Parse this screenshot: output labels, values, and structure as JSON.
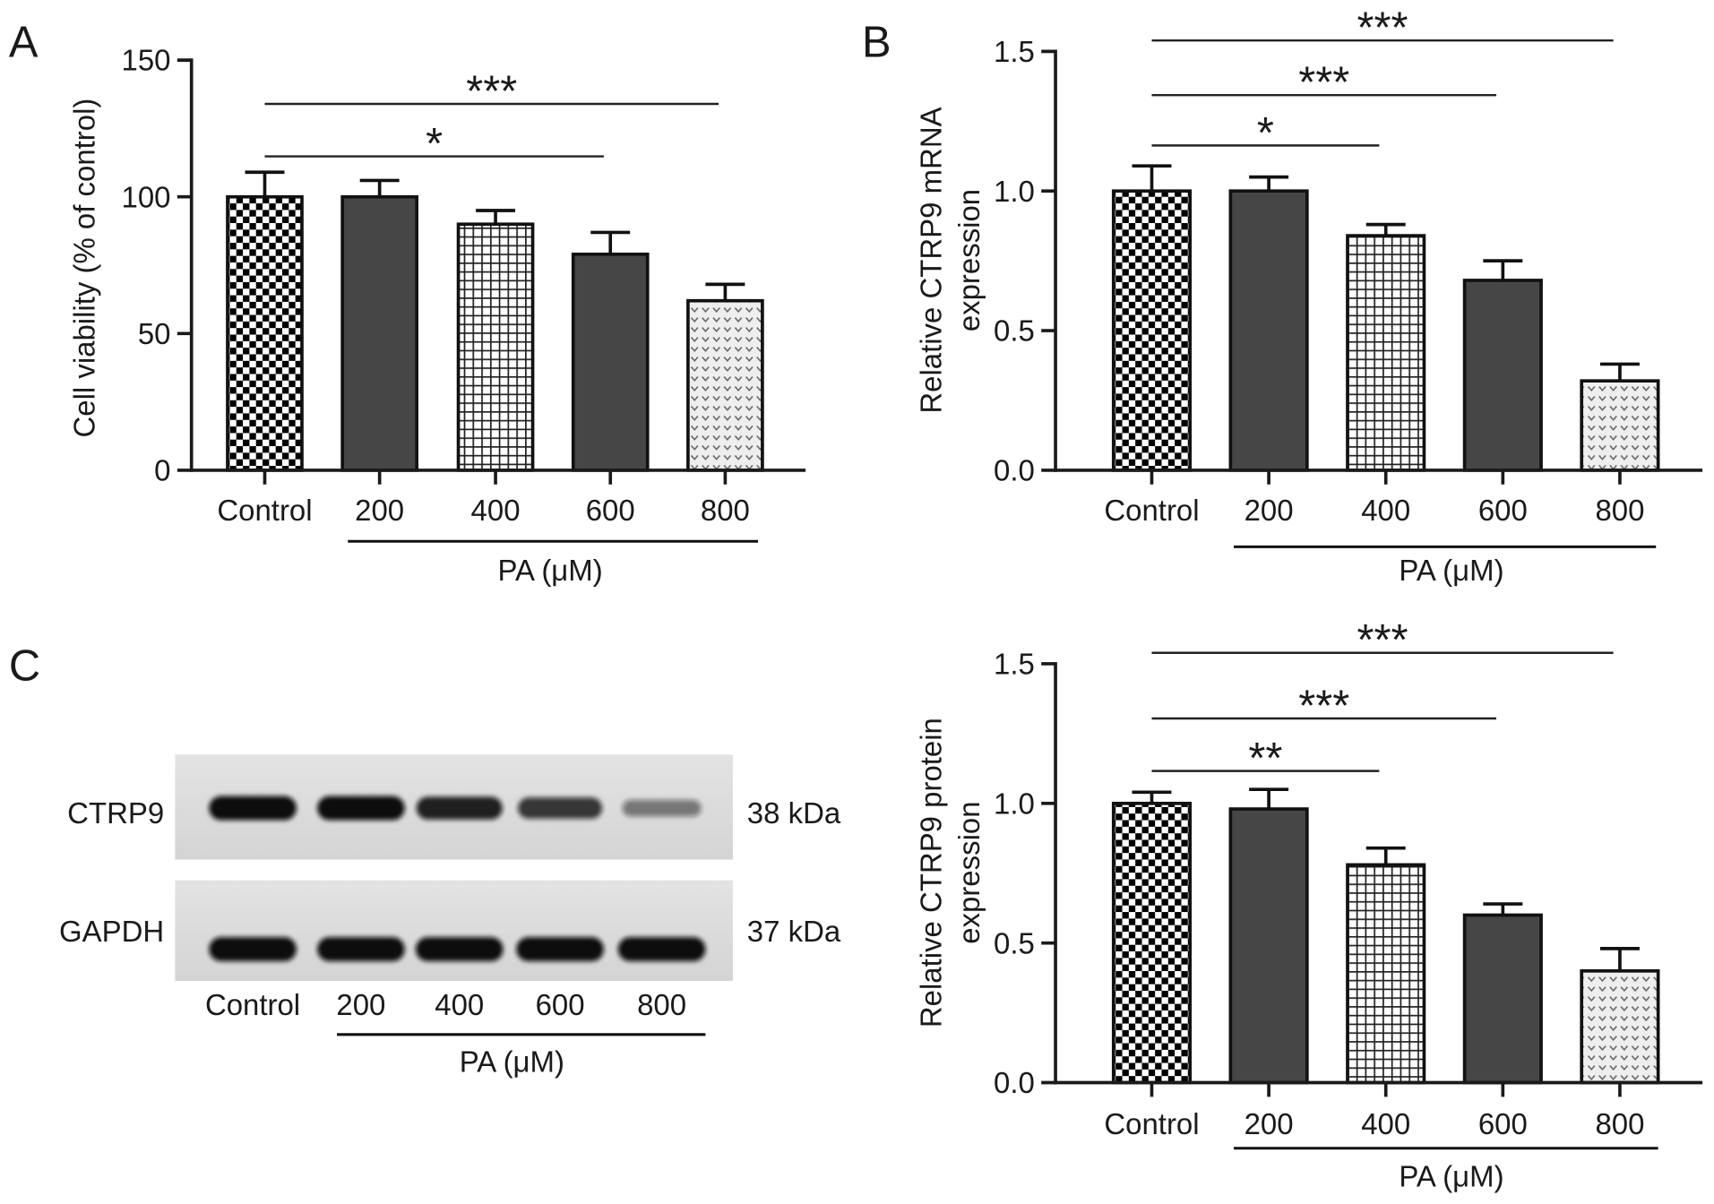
{
  "panels": {
    "a": "A",
    "b": "B",
    "c": "C"
  },
  "blot": {
    "lanes": [
      "Control",
      "200",
      "400",
      "600",
      "800"
    ],
    "xlabel": "PA (μM)",
    "rows": [
      {
        "protein": "CTRP9",
        "size": "38 kDa",
        "band_intensity": [
          1.0,
          1.0,
          0.9,
          0.78,
          0.42
        ]
      },
      {
        "protein": "GAPDH",
        "size": "37 kDa",
        "band_intensity": [
          1.0,
          1.0,
          1.0,
          1.0,
          1.0
        ]
      }
    ]
  },
  "chart_data": [
    {
      "type": "bar",
      "categories": [
        "Control",
        "200",
        "400",
        "600",
        "800"
      ],
      "values": [
        100,
        100,
        90,
        79,
        62
      ],
      "errors": [
        9,
        6,
        5,
        8,
        6
      ],
      "xlabel": "PA (μM)",
      "ylabel": [
        "Cell viability (% of control)"
      ],
      "ylim": [
        0,
        150
      ],
      "yticks": [
        "0",
        "50",
        "100",
        "150"
      ],
      "grid": false,
      "significance": [
        {
          "compare": [
            0,
            3
          ],
          "label": "*"
        },
        {
          "compare": [
            0,
            4
          ],
          "label": "***"
        }
      ]
    },
    {
      "type": "bar",
      "categories": [
        "Control",
        "200",
        "400",
        "600",
        "800"
      ],
      "values": [
        1.0,
        1.0,
        0.84,
        0.68,
        0.32
      ],
      "errors": [
        0.09,
        0.05,
        0.04,
        0.07,
        0.06
      ],
      "xlabel": "PA (μM)",
      "ylabel": [
        "Relative CTRP9 mRNA",
        "expression"
      ],
      "ylim": [
        0,
        1.5
      ],
      "yticks": [
        "0.0",
        "0.5",
        "1.0",
        "1.5"
      ],
      "grid": false,
      "significance": [
        {
          "compare": [
            0,
            2
          ],
          "label": "*"
        },
        {
          "compare": [
            0,
            3
          ],
          "label": "***"
        },
        {
          "compare": [
            0,
            4
          ],
          "label": "***"
        }
      ]
    },
    {
      "type": "bar",
      "categories": [
        "Control",
        "200",
        "400",
        "600",
        "800"
      ],
      "values": [
        1.0,
        0.98,
        0.78,
        0.6,
        0.4
      ],
      "errors": [
        0.04,
        0.07,
        0.06,
        0.04,
        0.08
      ],
      "xlabel": "PA (μM)",
      "ylabel": [
        "Relative CTRP9 protein",
        "expression"
      ],
      "ylim": [
        0,
        1.5
      ],
      "yticks": [
        "0.0",
        "0.5",
        "1.0",
        "1.5"
      ],
      "grid": false,
      "significance": [
        {
          "compare": [
            0,
            2
          ],
          "label": "**"
        },
        {
          "compare": [
            0,
            3
          ],
          "label": "***"
        },
        {
          "compare": [
            0,
            4
          ],
          "label": "***"
        }
      ]
    }
  ]
}
